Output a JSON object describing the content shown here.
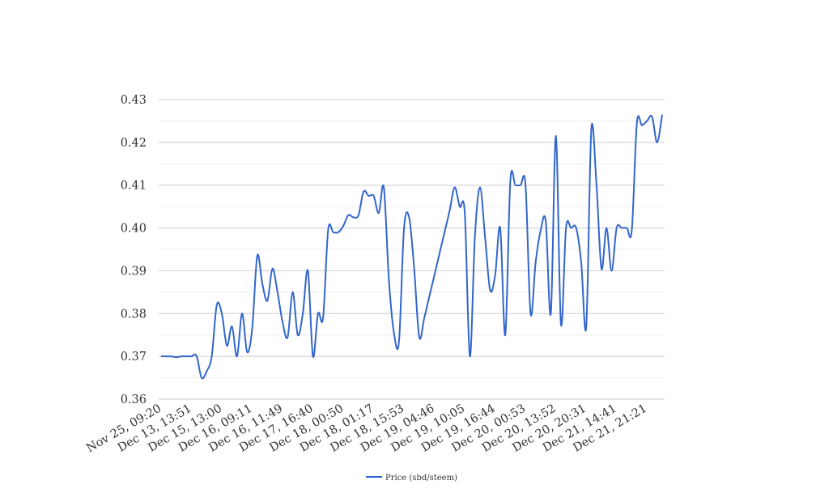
{
  "chart_data": {
    "type": "line",
    "title": "",
    "xlabel": "",
    "ylabel": "",
    "ylim": [
      0.36,
      0.43
    ],
    "yticks": [
      "0.36",
      "0.37",
      "0.38",
      "0.39",
      "0.40",
      "0.41",
      "0.42",
      "0.43"
    ],
    "minor_gridlines": true,
    "legend_position": "bottom-center",
    "x_tick_labels": [
      "Nov 25, 09:20",
      "Dec 13, 13:51",
      "Dec 15, 13:00",
      "Dec 16, 09:11",
      "Dec 16, 11:49",
      "Dec 17, 16:40",
      "Dec 18, 00:50",
      "Dec 18, 01:17",
      "Dec 18, 15:53",
      "Dec 19, 04:46",
      "Dec 19, 10:05",
      "Dec 19, 16:44",
      "Dec 20, 00:53",
      "Dec 20, 13:52",
      "Dec 20, 20:31",
      "Dec 21, 14:41",
      "Dec 21, 21:21"
    ],
    "series": [
      {
        "name": "Price (sbd/steem)",
        "color": "#3366cc",
        "values": [
          0.37,
          0.37,
          0.37,
          0.3698,
          0.37,
          0.37,
          0.37,
          0.3701,
          0.365,
          0.3665,
          0.37,
          0.382,
          0.38,
          0.3725,
          0.377,
          0.37,
          0.38,
          0.371,
          0.3765,
          0.3935,
          0.387,
          0.383,
          0.3905,
          0.385,
          0.378,
          0.3745,
          0.385,
          0.375,
          0.38,
          0.39,
          0.37,
          0.38,
          0.379,
          0.3995,
          0.399,
          0.399,
          0.4005,
          0.403,
          0.4025,
          0.403,
          0.4085,
          0.4075,
          0.4075,
          0.4035,
          0.4095,
          0.388,
          0.3755,
          0.3735,
          0.4,
          0.4025,
          0.3905,
          0.3745,
          0.379,
          0.384,
          0.389,
          0.394,
          0.399,
          0.404,
          0.4095,
          0.405,
          0.4035,
          0.37,
          0.398,
          0.4095,
          0.398,
          0.3855,
          0.389,
          0.4,
          0.375,
          0.411,
          0.41,
          0.41,
          0.41,
          0.38,
          0.392,
          0.3995,
          0.4015,
          0.38,
          0.4215,
          0.3775,
          0.4,
          0.4,
          0.4,
          0.392,
          0.377,
          0.423,
          0.4105,
          0.3905,
          0.4,
          0.39,
          0.4,
          0.4,
          0.4,
          0.3995,
          0.4245,
          0.424,
          0.425,
          0.426,
          0.42,
          0.4265
        ]
      }
    ]
  }
}
